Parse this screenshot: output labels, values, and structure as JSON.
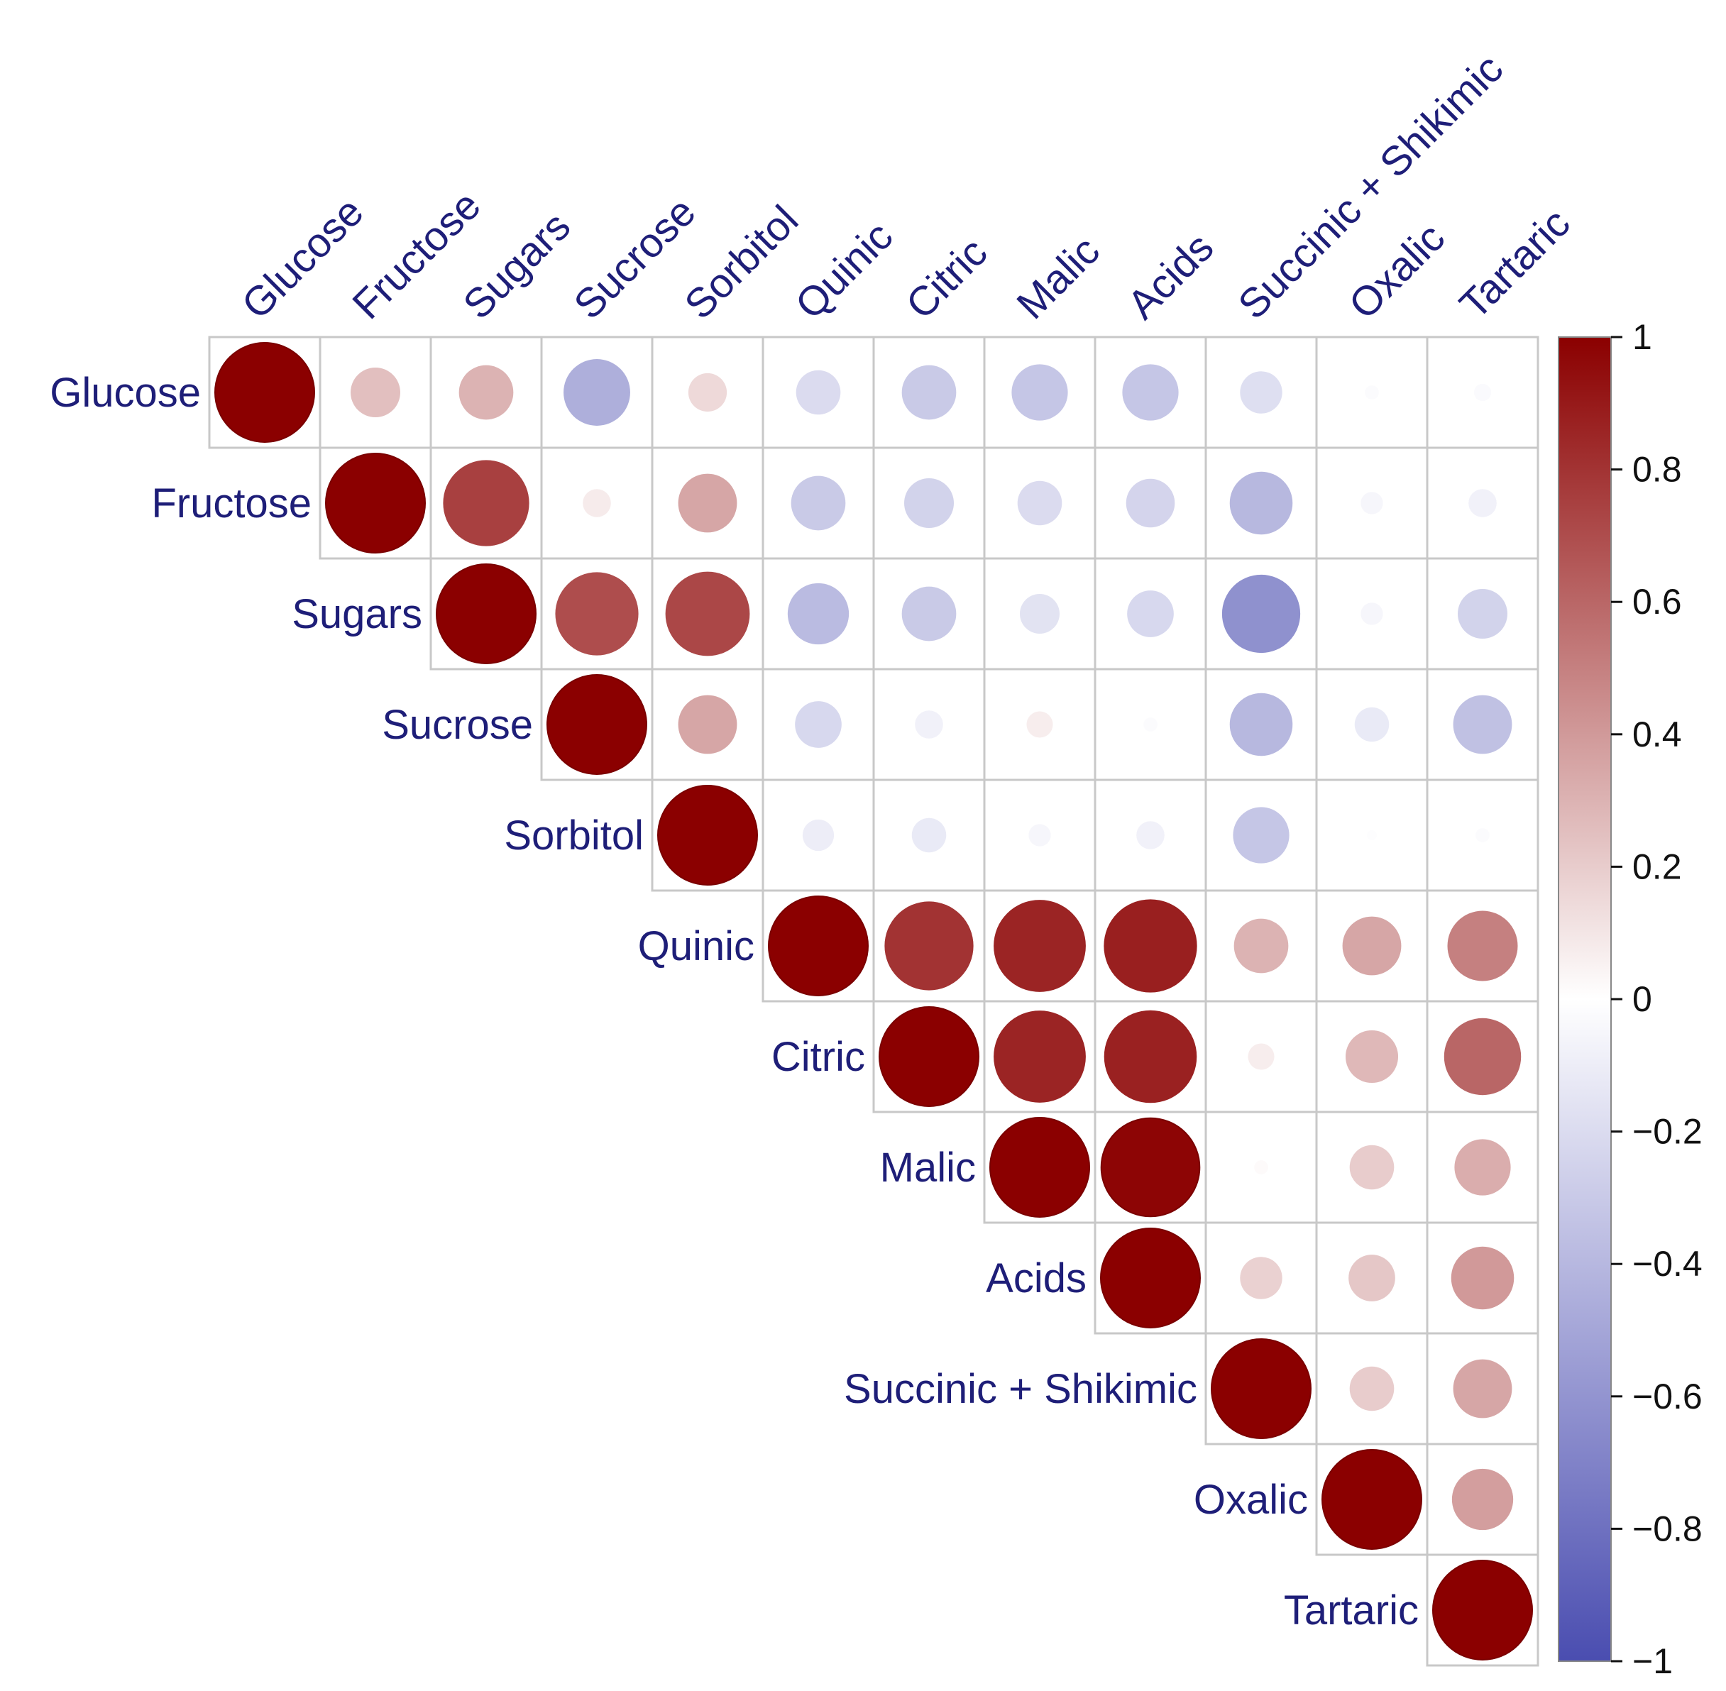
{
  "chart_data": {
    "type": "heatmap",
    "subtype": "correlation-circle-upper-triangle",
    "title": "",
    "variables": [
      "Glucose",
      "Fructose",
      "Sugars",
      "Sucrose",
      "Sorbitol",
      "Quinic",
      "Citric",
      "Malic",
      "Acids",
      "Succinic + Shikimic",
      "Oxalic",
      "Tartaric"
    ],
    "matrix": [
      [
        1.0,
        0.25,
        0.3,
        -0.45,
        0.15,
        -0.2,
        -0.3,
        -0.32,
        -0.32,
        -0.18,
        -0.02,
        -0.03
      ],
      [
        null,
        1.0,
        0.75,
        0.08,
        0.35,
        -0.3,
        -0.25,
        -0.2,
        -0.24,
        -0.4,
        -0.05,
        -0.08
      ],
      [
        null,
        null,
        1.0,
        0.7,
        0.72,
        -0.38,
        -0.3,
        -0.16,
        -0.22,
        -0.62,
        -0.05,
        -0.25
      ],
      [
        null,
        null,
        null,
        1.0,
        0.35,
        -0.22,
        -0.08,
        0.07,
        -0.02,
        -0.4,
        -0.12,
        -0.35
      ],
      [
        null,
        null,
        null,
        null,
        1.0,
        -0.1,
        -0.12,
        -0.05,
        -0.08,
        -0.32,
        -0.01,
        -0.02
      ],
      [
        null,
        null,
        null,
        null,
        null,
        1.0,
        0.8,
        0.86,
        0.88,
        0.3,
        0.35,
        0.5
      ],
      [
        null,
        null,
        null,
        null,
        null,
        null,
        1.0,
        0.86,
        0.87,
        0.07,
        0.28,
        0.6
      ],
      [
        null,
        null,
        null,
        null,
        null,
        null,
        null,
        1.0,
        0.98,
        0.02,
        0.2,
        0.32
      ],
      [
        null,
        null,
        null,
        null,
        null,
        null,
        null,
        null,
        1.0,
        0.18,
        0.22,
        0.4
      ],
      [
        null,
        null,
        null,
        null,
        null,
        null,
        null,
        null,
        null,
        1.0,
        0.2,
        0.35
      ],
      [
        null,
        null,
        null,
        null,
        null,
        null,
        null,
        null,
        null,
        null,
        1.0,
        0.38
      ],
      [
        null,
        null,
        null,
        null,
        null,
        null,
        null,
        null,
        null,
        null,
        null,
        1.0
      ]
    ],
    "colorbar": {
      "range": [
        -1,
        1
      ],
      "ticks": [
        1,
        0.8,
        0.6,
        0.4,
        0.2,
        0,
        -0.2,
        -0.4,
        -0.6,
        -0.8,
        -1
      ],
      "tick_labels": [
        "1",
        "0.8",
        "0.6",
        "0.4",
        "0.2",
        "0",
        "−0.2",
        "−0.4",
        "−0.6",
        "−0.8",
        "−1"
      ],
      "high_color": "#8b0000",
      "mid_color": "#ffffff",
      "low_color": "#4a4db0"
    },
    "grid_color": "#c8c8c8",
    "label_color": "#1e1e78"
  }
}
